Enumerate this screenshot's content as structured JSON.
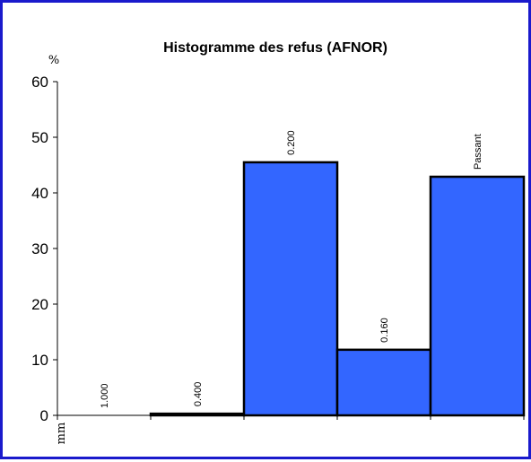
{
  "chart_data": {
    "type": "bar",
    "title": "Histogramme des refus (AFNOR)",
    "ylabel": "%",
    "xlabel": "mm",
    "ylim": [
      0,
      60
    ],
    "yticks": [
      0,
      10,
      20,
      30,
      40,
      50,
      60
    ],
    "grid": false,
    "legend": "none",
    "categories": [
      "1.000",
      "0.400",
      "0.200",
      "0.160",
      "Passant"
    ],
    "values": [
      0,
      0.3,
      45.5,
      11.8,
      42.9
    ],
    "colors": {
      "bar_fill": "#3366ff",
      "bar_stroke": "#000000",
      "frame": "#1a1acc"
    }
  }
}
